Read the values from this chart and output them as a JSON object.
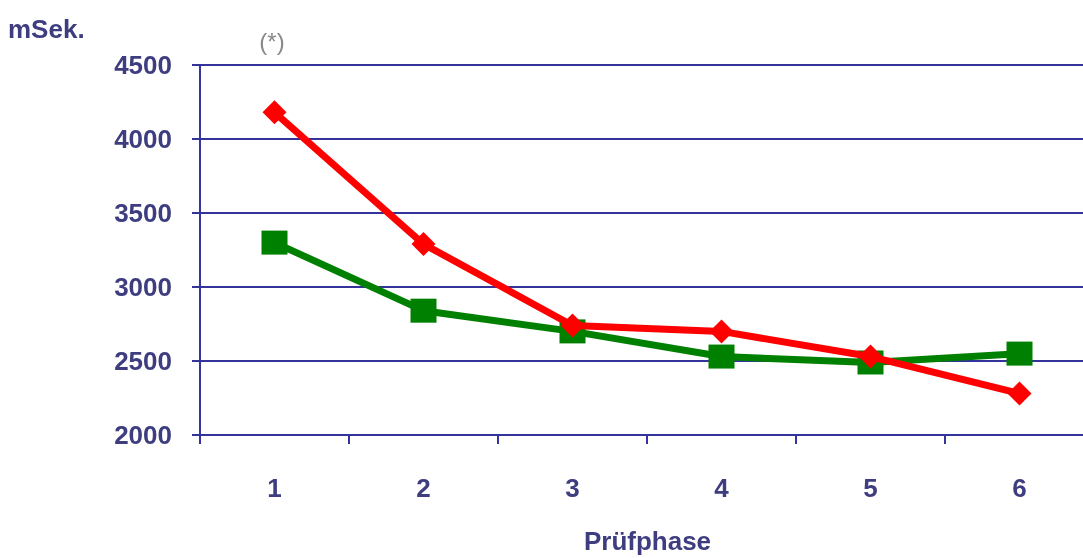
{
  "chart_data": {
    "type": "line",
    "ylabel": "mSek.",
    "xlabel": "Prüfphase",
    "annotations": [
      "(*)"
    ],
    "categories": [
      "1",
      "2",
      "3",
      "4",
      "5",
      "6"
    ],
    "series": [
      {
        "color": "#ff0000",
        "marker": "diamond",
        "values": [
          4180,
          3290,
          2740,
          2700,
          2530,
          2280
        ]
      },
      {
        "color": "#008000",
        "marker": "square",
        "values": [
          3300,
          2840,
          2700,
          2530,
          2490,
          2550
        ]
      }
    ],
    "ylim": [
      2000,
      4500
    ],
    "yticks": [
      2000,
      2500,
      3000,
      3500,
      4000,
      4500
    ],
    "grid": "y"
  }
}
